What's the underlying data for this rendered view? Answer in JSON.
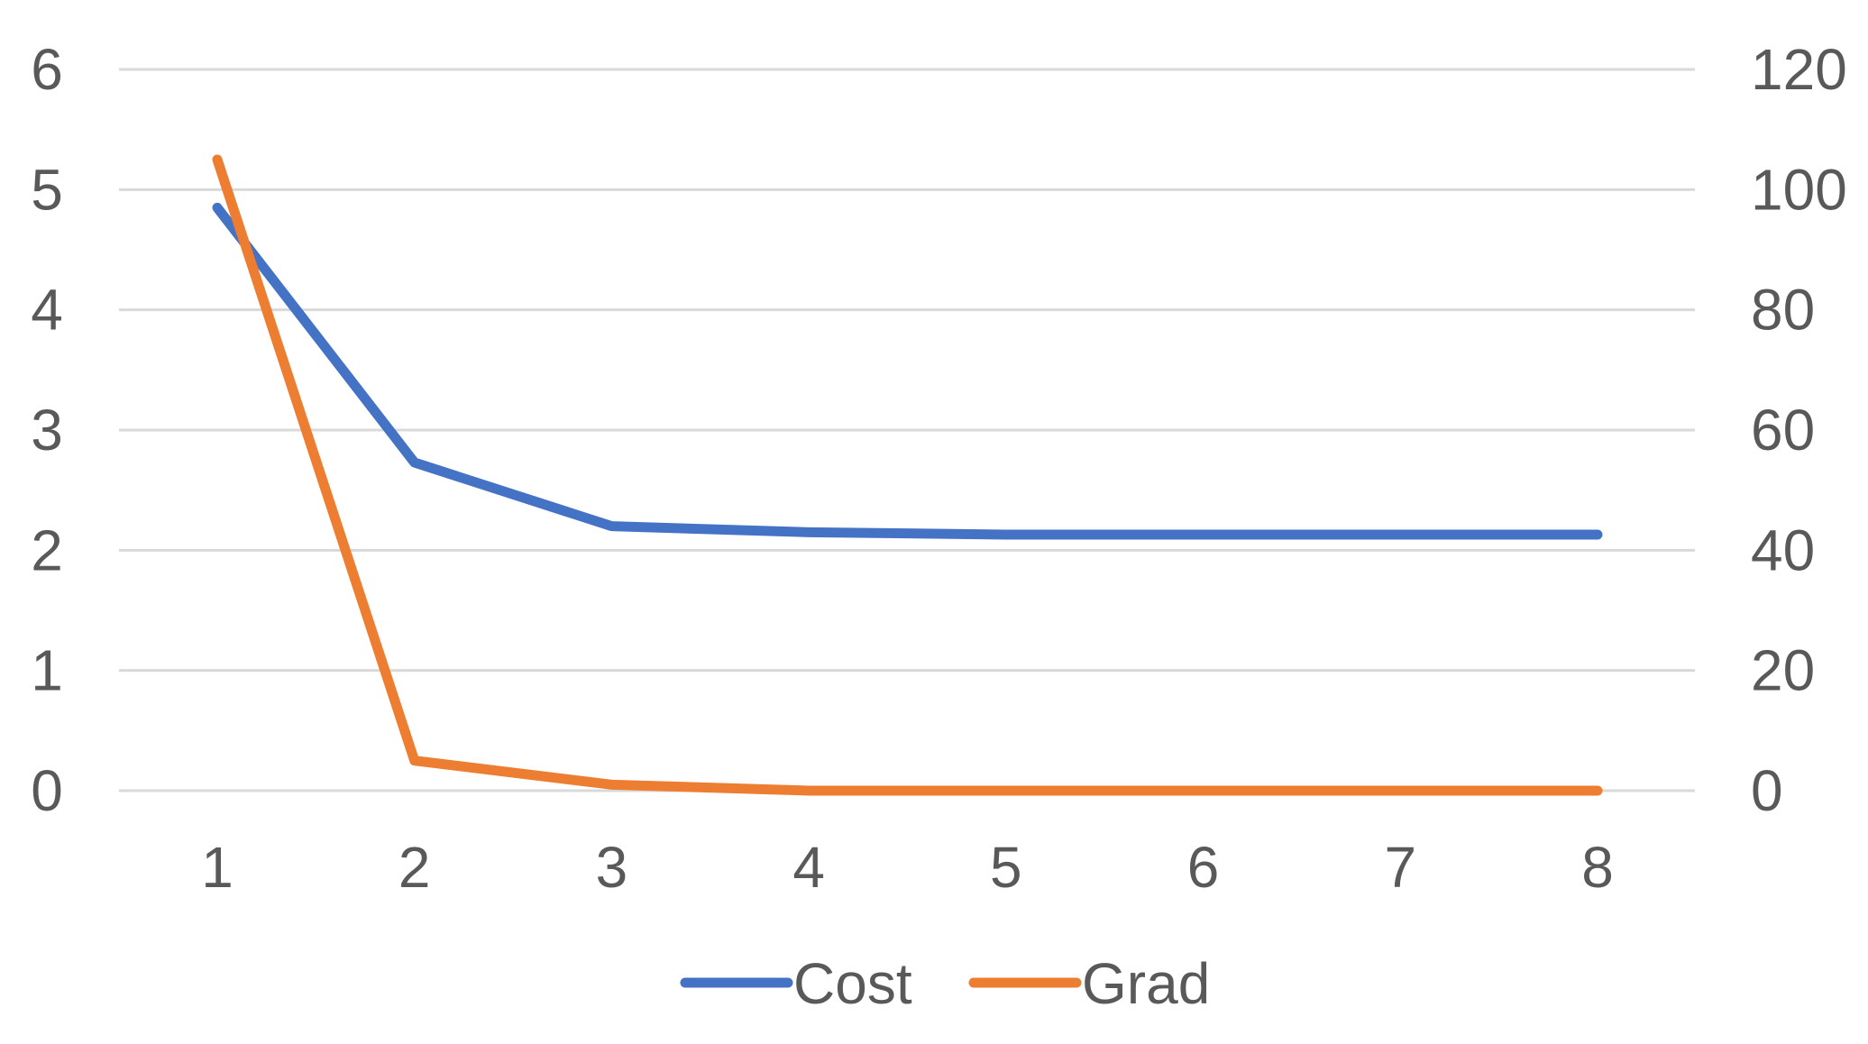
{
  "chart_data": {
    "type": "line",
    "title": "",
    "xlabel": "",
    "ylabel": "",
    "x": [
      1,
      2,
      3,
      4,
      5,
      6,
      7,
      8
    ],
    "ylim": [
      0,
      6
    ],
    "y2lim": [
      0,
      120
    ],
    "yticks": [
      0,
      1,
      2,
      3,
      4,
      5,
      6
    ],
    "y2ticks": [
      0,
      20,
      40,
      60,
      80,
      100,
      120
    ],
    "grid": true,
    "legend_position": "bottom",
    "series": [
      {
        "name": "Cost",
        "axis": "left",
        "color": "#4472c4",
        "values": [
          4.85,
          2.73,
          2.2,
          2.15,
          2.13,
          2.13,
          2.13,
          2.13
        ]
      },
      {
        "name": "Grad",
        "axis": "right",
        "color": "#ed7d31",
        "values": [
          105,
          5,
          1,
          0,
          0,
          0,
          0,
          0
        ]
      }
    ]
  }
}
